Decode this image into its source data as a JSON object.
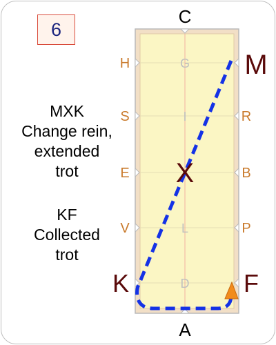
{
  "step_number": "6",
  "instructions": [
    {
      "lines": [
        "MXK",
        "Change rein,",
        "extended",
        "trot"
      ]
    },
    {
      "lines": [
        "KF",
        "Collected",
        "trot"
      ]
    }
  ],
  "arena_letters": {
    "top": "C",
    "bottom": "A",
    "left": [
      "H",
      "S",
      "E",
      "V"
    ],
    "right": [
      "R",
      "B",
      "P"
    ],
    "center_line": [
      "G",
      "I",
      "L",
      "D"
    ],
    "center": "X",
    "highlight_start": "M",
    "highlight_mid": "K",
    "highlight_end": "F"
  },
  "colors": {
    "arena_fill": "#fbf6c4",
    "arena_border": "#f2dfc6",
    "path": "#1432e6",
    "side_letters": "#c97a2c",
    "faint_letters": "#bfbfbf",
    "highlight_letters": "#5a0a0a",
    "direction_marker": "#f28c1c"
  }
}
